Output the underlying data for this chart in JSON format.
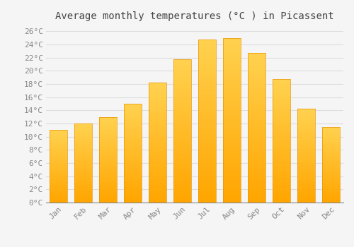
{
  "title": "Average monthly temperatures (°C ) in Picassent",
  "months": [
    "Jan",
    "Feb",
    "Mar",
    "Apr",
    "May",
    "Jun",
    "Jul",
    "Aug",
    "Sep",
    "Oct",
    "Nov",
    "Dec"
  ],
  "values": [
    11,
    12,
    13,
    15,
    18.2,
    21.7,
    24.7,
    25,
    22.7,
    18.7,
    14.2,
    11.5
  ],
  "bar_color_bottom": "#FFA500",
  "bar_color_top": "#FFD050",
  "ylim": [
    0,
    27
  ],
  "yticks": [
    0,
    2,
    4,
    6,
    8,
    10,
    12,
    14,
    16,
    18,
    20,
    22,
    24,
    26
  ],
  "background_color": "#f5f5f5",
  "plot_bg_color": "#f5f5f5",
  "grid_color": "#dddddd",
  "title_fontsize": 10,
  "tick_fontsize": 8,
  "tick_color": "#888888",
  "title_color": "#444444",
  "font_family": "monospace"
}
